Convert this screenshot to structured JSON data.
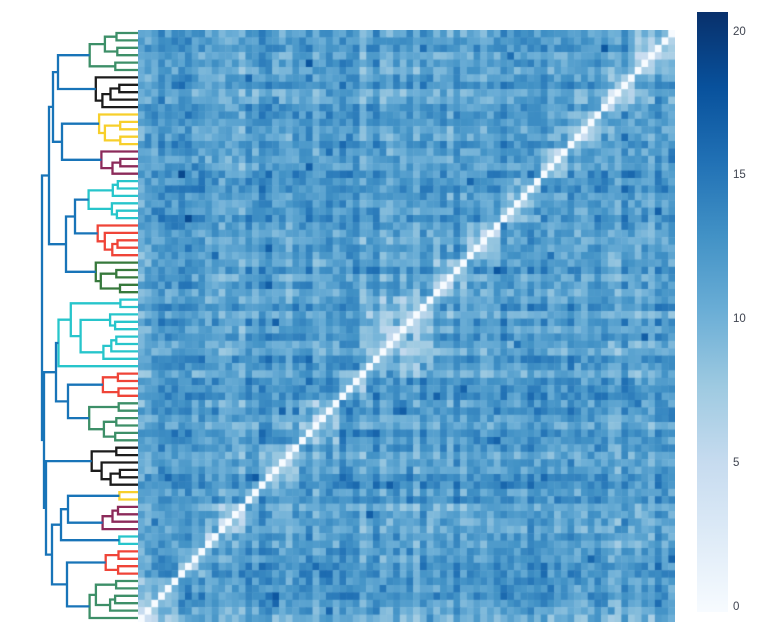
{
  "background_color": "#ffffff",
  "chart_data": {
    "type": "heatmap",
    "subtype": "clustergram-distance-matrix",
    "title": "",
    "xlabel": "",
    "ylabel": "",
    "n_leaves": 80,
    "grid": false,
    "legend_position": "none",
    "diagonal": "zero (white), runs bottom-left to top-right (columns reversed vs rows)",
    "value_range": [
      0,
      20.7
    ],
    "colorscale_name": "Blues",
    "colorscale_stops": [
      "#f7fbff",
      "#deebf7",
      "#c6dbef",
      "#9ecae1",
      "#6baed6",
      "#4292c6",
      "#2171b5",
      "#08519c",
      "#08306b"
    ],
    "row_dendrogram": {
      "orientation": "left",
      "link_color": "#1874b8",
      "clusters": [
        {
          "name": "green",
          "color": "#3d8f68",
          "leaves": 6
        },
        {
          "name": "black",
          "color": "#1c1c1c",
          "leaves": 5
        },
        {
          "name": "yellow",
          "color": "#f7cf2b",
          "leaves": 5
        },
        {
          "name": "maroon",
          "color": "#8c2a5a",
          "leaves": 4
        },
        {
          "name": "cyan",
          "color": "#27c5cb",
          "leaves": 6
        },
        {
          "name": "red",
          "color": "#ef4438",
          "leaves": 5
        },
        {
          "name": "dark-green",
          "color": "#37793c",
          "leaves": 5
        },
        {
          "name": "cyan",
          "color": "#27c5cb",
          "leaves": 10
        },
        {
          "name": "red",
          "color": "#ef4438",
          "leaves": 4
        },
        {
          "name": "green",
          "color": "#3d8f68",
          "leaves": 6
        },
        {
          "name": "black",
          "color": "#1c1c1c",
          "leaves": 6
        },
        {
          "name": "yellow",
          "color": "#f7cf2b",
          "leaves": 2
        },
        {
          "name": "maroon",
          "color": "#8c2a5a",
          "leaves": 4
        },
        {
          "name": "cyan",
          "color": "#27c5cb",
          "leaves": 2
        },
        {
          "name": "red",
          "color": "#ef4438",
          "leaves": 4
        },
        {
          "name": "green",
          "color": "#3d8f68",
          "leaves": 6
        }
      ],
      "merges": [
        {
          "id": "A",
          "children": [
            "c0",
            "c1"
          ],
          "x": 58
        },
        {
          "id": "B",
          "children": [
            "c2",
            "c3"
          ],
          "x": 62
        },
        {
          "id": "AB",
          "children": [
            "A",
            "B"
          ],
          "x": 53
        },
        {
          "id": "C",
          "children": [
            "c4",
            "c5"
          ],
          "x": 75
        },
        {
          "id": "D",
          "children": [
            "C",
            "c6"
          ],
          "x": 66
        },
        {
          "id": "E",
          "children": [
            "AB",
            "D"
          ],
          "x": 49
        },
        {
          "id": "F",
          "children": [
            "c8",
            "c9"
          ],
          "x": 68
        },
        {
          "id": "G",
          "children": [
            "c7",
            "F"
          ],
          "x": 56
        },
        {
          "id": "H",
          "children": [
            "c11",
            "c12"
          ],
          "x": 68
        },
        {
          "id": "I",
          "children": [
            "H",
            "c13"
          ],
          "x": 61
        },
        {
          "id": "J",
          "children": [
            "c14",
            "c15"
          ],
          "x": 67
        },
        {
          "id": "K",
          "children": [
            "I",
            "J"
          ],
          "x": 52
        },
        {
          "id": "L",
          "children": [
            "c10",
            "K"
          ],
          "x": 46
        },
        {
          "id": "M",
          "children": [
            "G",
            "L"
          ],
          "x": 44
        },
        {
          "id": "root",
          "children": [
            "E",
            "M"
          ],
          "x": 42
        }
      ]
    },
    "heatmap_generation": {
      "seed": 42,
      "base_value": 11.6,
      "leaf_streak_amplitude": 3.0,
      "cell_noise_amplitude": 4.4,
      "within_cluster_offset": -2.8,
      "near_diagonal_extra_offset": -1.5,
      "dark_speck_probability": 0.02,
      "dark_speck_boost": 3.0,
      "clamp": [
        1.5,
        19.8
      ],
      "diagonal_value": 0
    },
    "colorbar": {
      "ticks": [
        {
          "value": 20,
          "label": "20"
        },
        {
          "value": 15,
          "label": "15"
        },
        {
          "value": 10,
          "label": "10"
        },
        {
          "value": 5,
          "label": "5"
        },
        {
          "value": 0,
          "label": "0"
        }
      ]
    }
  }
}
